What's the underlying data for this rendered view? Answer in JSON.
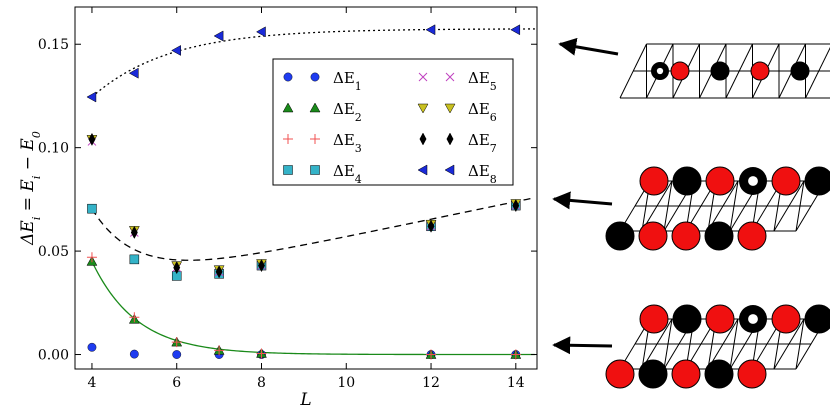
{
  "chart_data": {
    "type": "scatter",
    "xlabel": "L",
    "ylabel": "ΔE_i = E_i − E_0",
    "xlim": [
      3.6,
      14.5
    ],
    "ylim": [
      -0.007,
      0.168
    ],
    "x_ticks": [
      "4",
      "6",
      "8",
      "10",
      "12",
      "14"
    ],
    "y_ticks": [
      "0.00",
      "0.05",
      "0.10",
      "0.15"
    ],
    "x_tick_values": [
      4,
      6,
      8,
      10,
      12,
      14
    ],
    "y_tick_values": [
      0.0,
      0.05,
      0.1,
      0.15
    ],
    "legend_placement": "upper-center",
    "series": [
      {
        "name": "ΔE_1",
        "label_base": "ΔE",
        "label_sub": "1",
        "marker": "circle",
        "color": "#1f3cf0",
        "x": [
          4,
          5,
          6,
          7,
          8,
          12,
          14
        ],
        "y": [
          0.0035,
          0.0002,
          0.0,
          0.0,
          0.0,
          0.0,
          0.0
        ]
      },
      {
        "name": "ΔE_2",
        "label_base": "ΔE",
        "label_sub": "2",
        "marker": "triangle-up",
        "color": "#1a8a1a",
        "x": [
          4,
          5,
          6,
          7,
          8,
          12,
          14
        ],
        "y": [
          0.045,
          0.017,
          0.006,
          0.002,
          0.0005,
          0.0,
          0.0
        ]
      },
      {
        "name": "ΔE_3",
        "label_base": "ΔE",
        "label_sub": "3",
        "marker": "plus",
        "color": "#f05050",
        "x": [
          4,
          5,
          6,
          7,
          8,
          12,
          14
        ],
        "y": [
          0.047,
          0.018,
          0.006,
          0.002,
          0.0005,
          0.0,
          0.0
        ]
      },
      {
        "name": "ΔE_4",
        "label_base": "ΔE",
        "label_sub": "4",
        "marker": "square",
        "color": "#34b3c8",
        "x": [
          4,
          5,
          6,
          7,
          8,
          12,
          14
        ],
        "y": [
          0.0705,
          0.046,
          0.038,
          0.039,
          0.043,
          0.062,
          0.072
        ]
      },
      {
        "name": "ΔE_5",
        "label_base": "ΔE",
        "label_sub": "5",
        "marker": "x",
        "color": "#c040c0",
        "x": [
          4,
          5,
          6,
          7,
          8,
          12,
          14
        ],
        "y": [
          0.103,
          0.059,
          0.042,
          0.04,
          0.043,
          0.062,
          0.072
        ]
      },
      {
        "name": "ΔE_6",
        "label_base": "ΔE",
        "label_sub": "6",
        "marker": "triangle-down",
        "color": "#c8c020",
        "x": [
          4,
          5,
          6,
          7,
          8,
          12,
          14
        ],
        "y": [
          0.104,
          0.06,
          0.043,
          0.041,
          0.044,
          0.063,
          0.073
        ]
      },
      {
        "name": "ΔE_7",
        "label_base": "ΔE",
        "label_sub": "7",
        "marker": "thin-diamond",
        "color": "#000000",
        "x": [
          4,
          5,
          6,
          7,
          8,
          12,
          14
        ],
        "y": [
          0.104,
          0.059,
          0.042,
          0.04,
          0.043,
          0.062,
          0.072
        ]
      },
      {
        "name": "ΔE_8",
        "label_base": "ΔE",
        "label_sub": "8",
        "marker": "triangle-left",
        "color": "#1a2ad8",
        "x": [
          4,
          5,
          6,
          7,
          8,
          12,
          14
        ],
        "y": [
          0.1245,
          0.136,
          0.147,
          0.154,
          0.156,
          0.157,
          0.157
        ]
      }
    ],
    "fit_curves": [
      {
        "style": "dotted",
        "color": "#000000",
        "form": "a - b*exp(-c*(x-4))",
        "a": 0.1575,
        "b": 0.033,
        "c": 0.55
      },
      {
        "style": "dashed",
        "color": "#000000",
        "form": "a + b*exp(-c*(x-4)) + d*(x-4)",
        "a": 0.0314,
        "b": 0.039,
        "c": 0.95,
        "d": 0.00425
      },
      {
        "style": "solid",
        "color": "#1a8a1a",
        "form": "b*exp(-c*(x-4))",
        "a": 0.0,
        "b": 0.045,
        "c": 0.95
      }
    ]
  },
  "lattice_insets": [
    {
      "name": "top-lattice",
      "rows": [
        [
          "white",
          "ring",
          "red",
          "white",
          "black",
          "white",
          "red",
          "white",
          "black"
        ]
      ]
    },
    {
      "name": "middle-lattice",
      "rows": [
        [
          "red",
          "black",
          "red",
          "ring",
          "red",
          "black"
        ],
        [
          "black",
          "red",
          "red",
          "black",
          "red"
        ]
      ]
    },
    {
      "name": "bottom-lattice",
      "rows": [
        [
          "red",
          "black",
          "red",
          "ring",
          "red",
          "black"
        ],
        [
          "red",
          "black",
          "red",
          "black",
          "red"
        ]
      ]
    }
  ],
  "colors": {
    "red": "#f01010",
    "black": "#000000"
  }
}
